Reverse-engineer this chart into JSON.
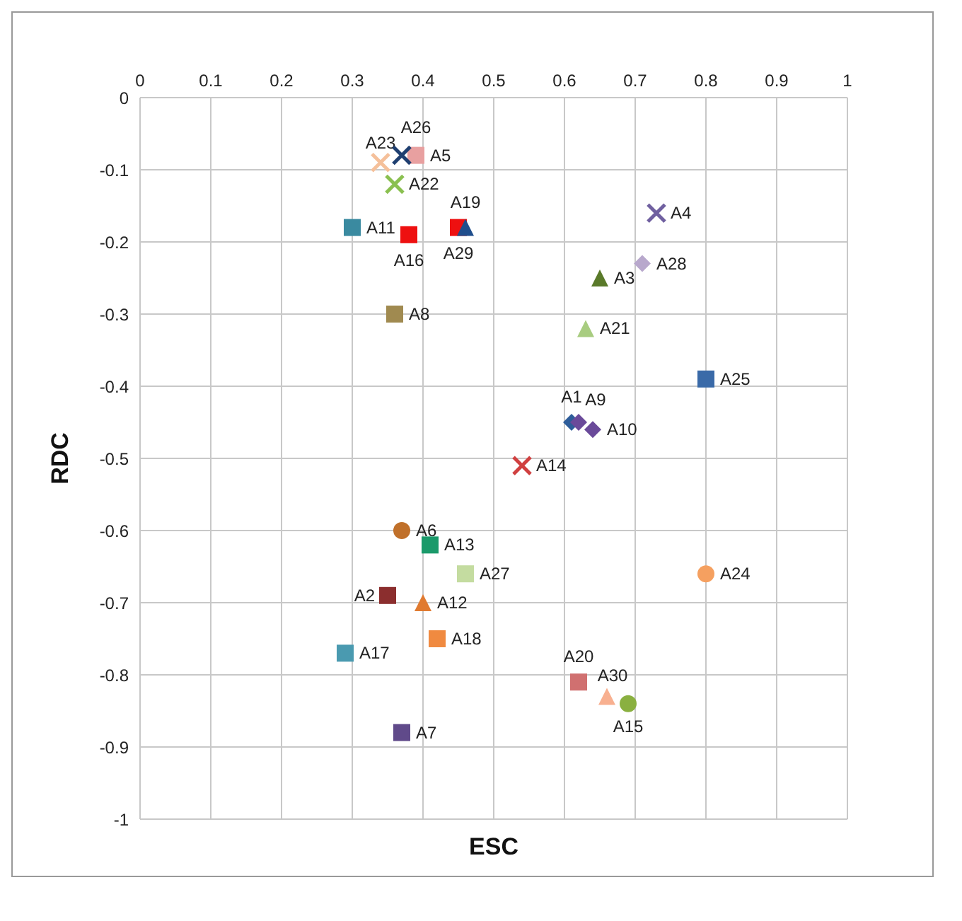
{
  "chart_data": {
    "type": "scatter",
    "xlabel": "ESC",
    "ylabel": "RDC",
    "xlim": [
      0,
      1
    ],
    "ylim": [
      -1,
      0
    ],
    "xticks": [
      0,
      0.1,
      0.2,
      0.3,
      0.4,
      0.5,
      0.6,
      0.7,
      0.8,
      0.9,
      1
    ],
    "yticks": [
      0,
      -0.1,
      -0.2,
      -0.3,
      -0.4,
      -0.5,
      -0.6,
      -0.7,
      -0.8,
      -0.9,
      -1
    ],
    "grid": true,
    "series": [
      {
        "name": "A1",
        "color": "#2e5d9a",
        "marker": "diamond",
        "x": [
          0.61
        ],
        "values": [
          -0.45
        ]
      },
      {
        "name": "A2",
        "color": "#8b2e2e",
        "marker": "square",
        "x": [
          0.35
        ],
        "values": [
          -0.69
        ]
      },
      {
        "name": "A3",
        "color": "#5a7a2a",
        "marker": "triangle",
        "x": [
          0.65
        ],
        "values": [
          -0.25
        ]
      },
      {
        "name": "A4",
        "color": "#7060a0",
        "marker": "cross",
        "x": [
          0.73
        ],
        "values": [
          -0.16
        ]
      },
      {
        "name": "A5",
        "color": "#e8a0a0",
        "marker": "square",
        "x": [
          0.39
        ],
        "values": [
          -0.08
        ]
      },
      {
        "name": "A6",
        "color": "#c0702a",
        "marker": "circle",
        "x": [
          0.37
        ],
        "values": [
          -0.6
        ]
      },
      {
        "name": "A7",
        "color": "#604a8a",
        "marker": "square",
        "x": [
          0.37
        ],
        "values": [
          -0.88
        ]
      },
      {
        "name": "A8",
        "color": "#a08a50",
        "marker": "square",
        "x": [
          0.36
        ],
        "values": [
          -0.3
        ]
      },
      {
        "name": "A9",
        "color": "#6a4a9a",
        "marker": "diamond",
        "x": [
          0.62
        ],
        "values": [
          -0.45
        ]
      },
      {
        "name": "A10",
        "color": "#6a4a9a",
        "marker": "diamond",
        "x": [
          0.64
        ],
        "values": [
          -0.46
        ]
      },
      {
        "name": "A11",
        "color": "#3a8aa0",
        "marker": "square",
        "x": [
          0.3
        ],
        "values": [
          -0.18
        ]
      },
      {
        "name": "A12",
        "color": "#e07a30",
        "marker": "triangle",
        "x": [
          0.4
        ],
        "values": [
          -0.7
        ]
      },
      {
        "name": "A13",
        "color": "#1a9a6a",
        "marker": "square",
        "x": [
          0.41
        ],
        "values": [
          -0.62
        ]
      },
      {
        "name": "A14",
        "color": "#d04040",
        "marker": "cross",
        "x": [
          0.54
        ],
        "values": [
          -0.51
        ]
      },
      {
        "name": "A15",
        "color": "#8ab040",
        "marker": "circle",
        "x": [
          0.69
        ],
        "values": [
          -0.84
        ]
      },
      {
        "name": "A16",
        "color": "#ee1010",
        "marker": "square",
        "x": [
          0.38
        ],
        "values": [
          -0.19
        ]
      },
      {
        "name": "A17",
        "color": "#4a9ab0",
        "marker": "square",
        "x": [
          0.29
        ],
        "values": [
          -0.77
        ]
      },
      {
        "name": "A18",
        "color": "#f08a40",
        "marker": "square",
        "x": [
          0.42
        ],
        "values": [
          -0.75
        ]
      },
      {
        "name": "A19",
        "color": "#1f4e8c",
        "marker": "triangle",
        "x": [
          0.46
        ],
        "values": [
          -0.18
        ]
      },
      {
        "name": "A20",
        "color": "#d07070",
        "marker": "square",
        "x": [
          0.62
        ],
        "values": [
          -0.81
        ]
      },
      {
        "name": "A21",
        "color": "#a8cc80",
        "marker": "triangle",
        "x": [
          0.63
        ],
        "values": [
          -0.32
        ]
      },
      {
        "name": "A22",
        "color": "#8ac050",
        "marker": "cross",
        "x": [
          0.36
        ],
        "values": [
          -0.12
        ]
      },
      {
        "name": "A23",
        "color": "#f5c09a",
        "marker": "cross",
        "x": [
          0.34
        ],
        "values": [
          -0.09
        ]
      },
      {
        "name": "A24",
        "color": "#f5a060",
        "marker": "circle",
        "x": [
          0.8
        ],
        "values": [
          -0.66
        ]
      },
      {
        "name": "A25",
        "color": "#3a6aa8",
        "marker": "square",
        "x": [
          0.8
        ],
        "values": [
          -0.39
        ]
      },
      {
        "name": "A26",
        "color": "#1f3f70",
        "marker": "cross",
        "x": [
          0.37
        ],
        "values": [
          -0.08
        ]
      },
      {
        "name": "A27",
        "color": "#c4dca0",
        "marker": "square",
        "x": [
          0.46
        ],
        "values": [
          -0.66
        ]
      },
      {
        "name": "A28",
        "color": "#b8a8cc",
        "marker": "diamond",
        "x": [
          0.71
        ],
        "values": [
          -0.23
        ]
      },
      {
        "name": "A29",
        "color": "#ee1010",
        "marker": "square",
        "x": [
          0.45
        ],
        "values": [
          -0.18
        ]
      },
      {
        "name": "A30",
        "color": "#f8b090",
        "marker": "triangle",
        "x": [
          0.66
        ],
        "values": [
          -0.83
        ]
      }
    ]
  }
}
